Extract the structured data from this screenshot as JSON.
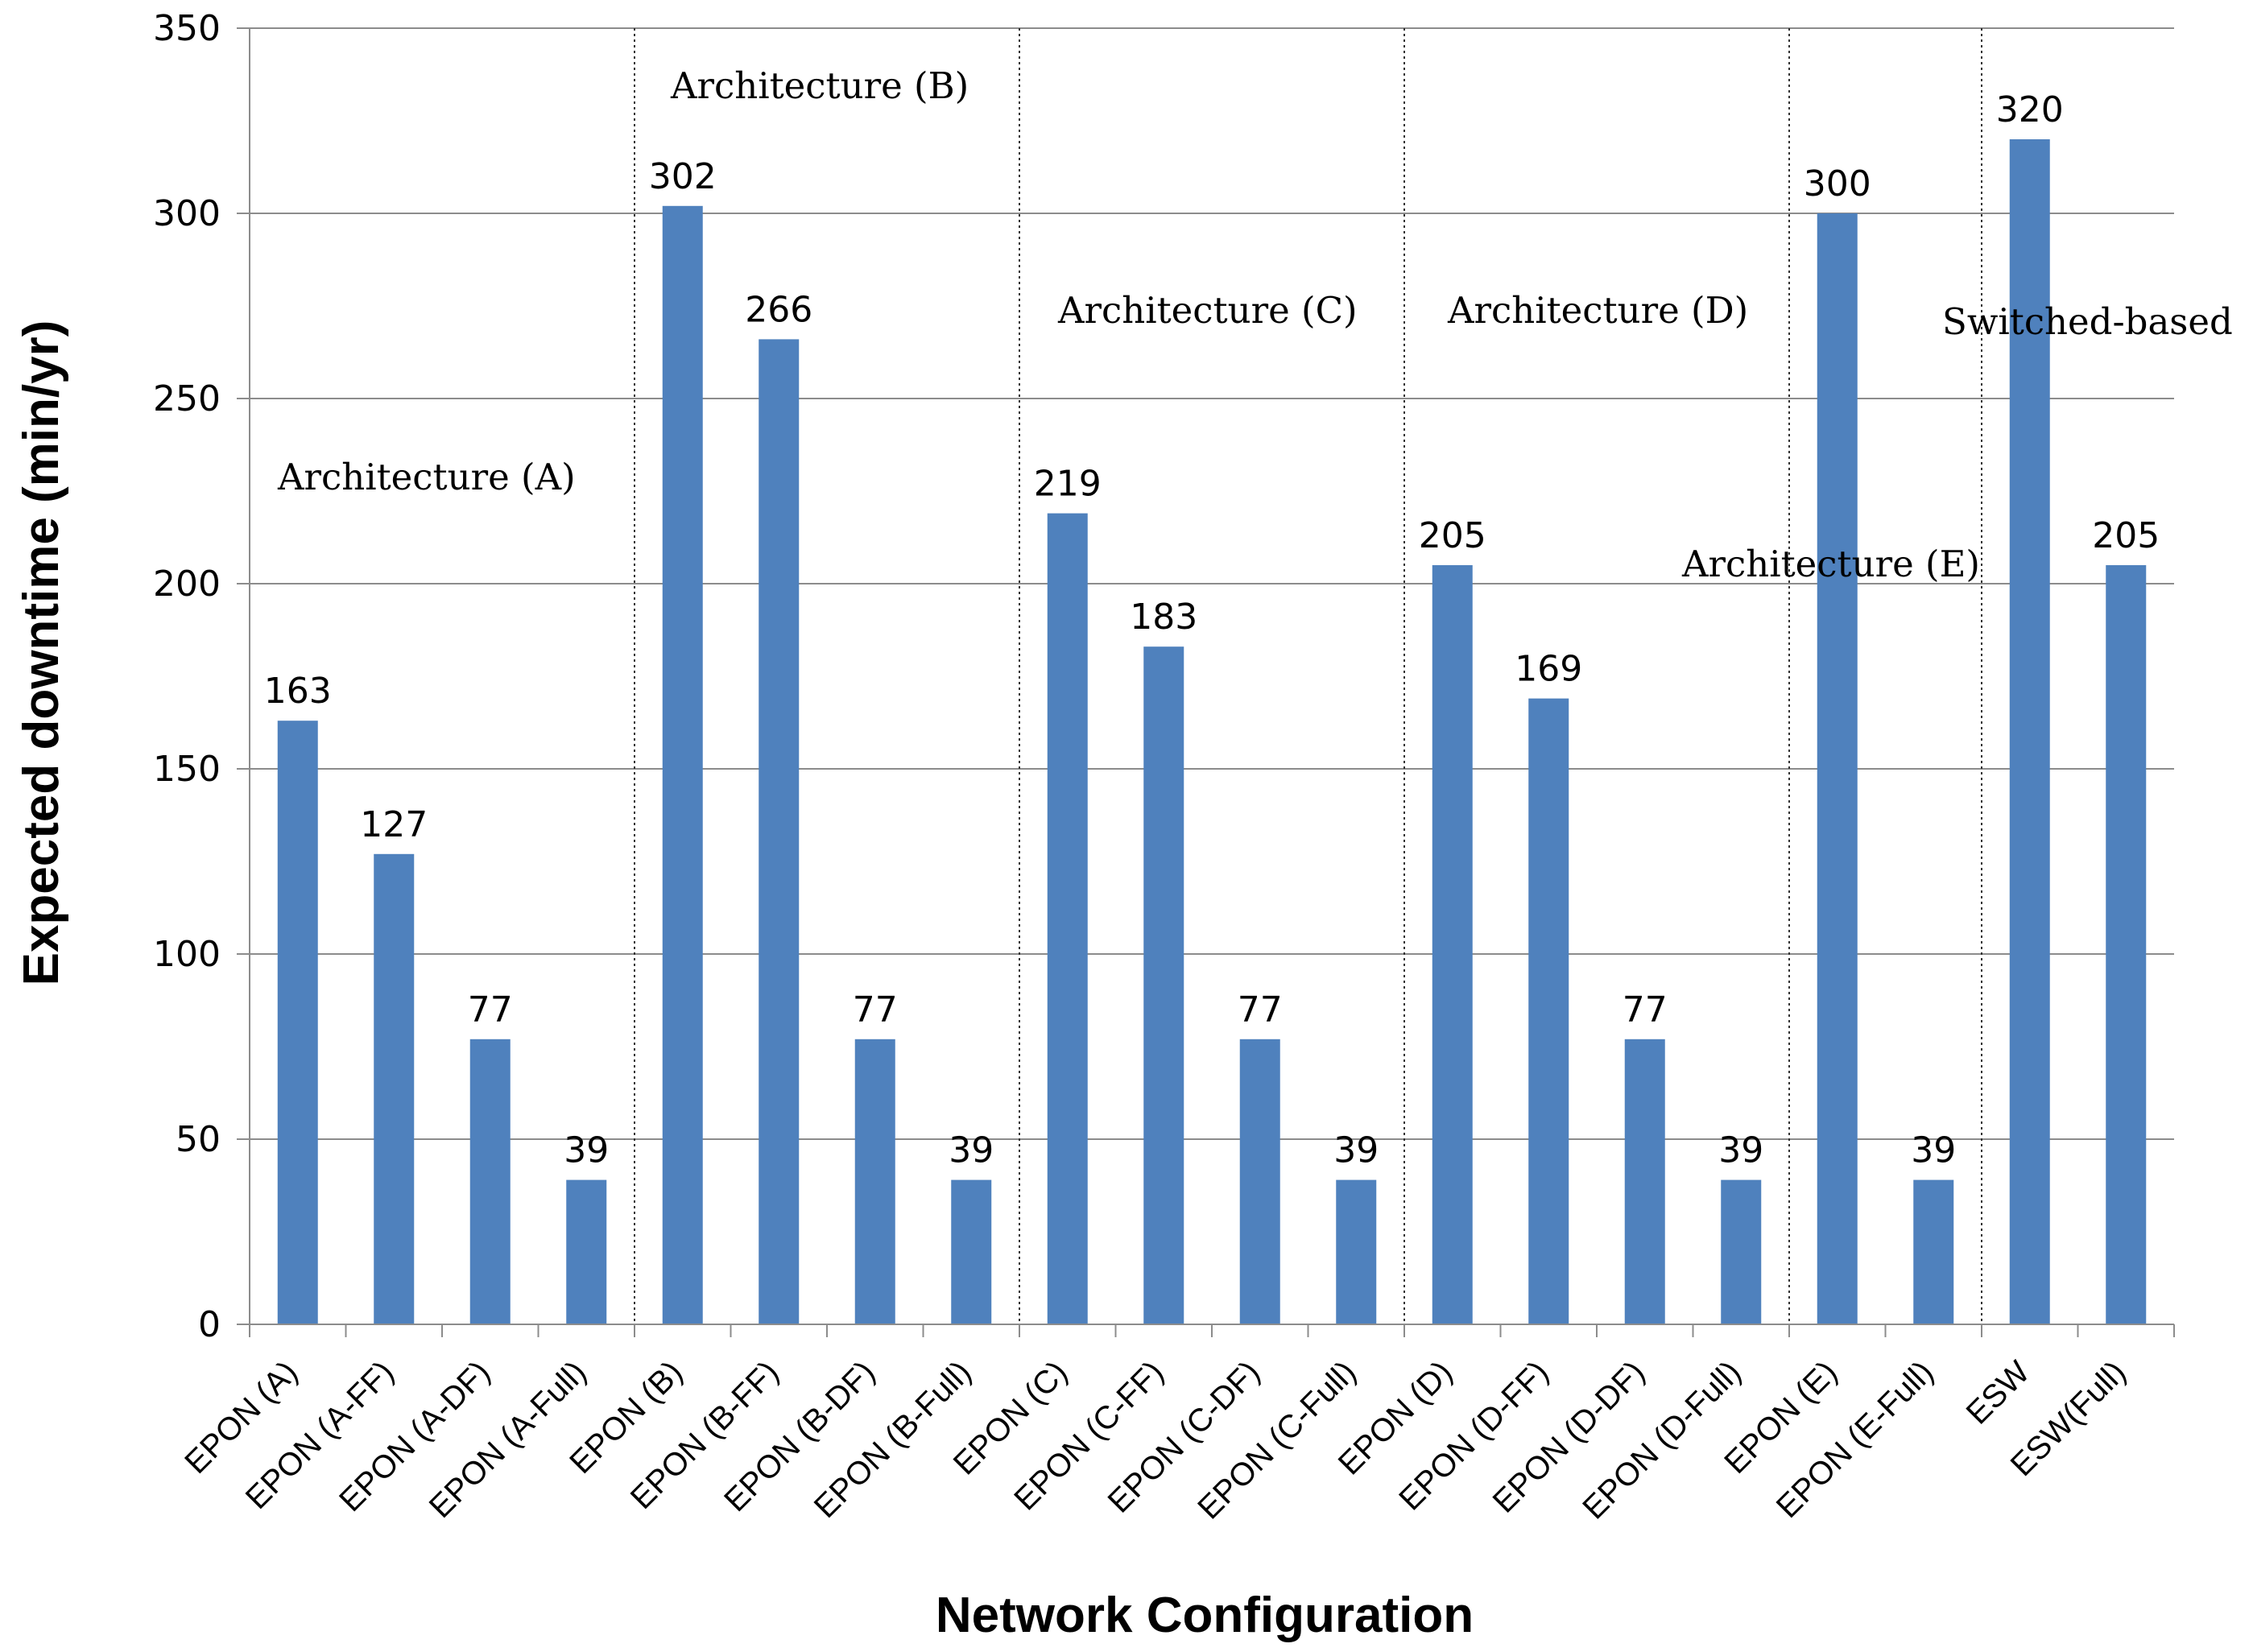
{
  "chart_data": {
    "type": "bar",
    "title": "",
    "xlabel": "Network Configuration",
    "ylabel": "Expected downtime (min/yr)",
    "ylim": [
      0,
      350
    ],
    "yticks": [
      0,
      50,
      100,
      150,
      200,
      250,
      300,
      350
    ],
    "grid": true,
    "bar_color": "#4f81bd",
    "categories": [
      "EPON (A)",
      "EPON (A-FF)",
      "EPON (A-DF)",
      "EPON (A-Full)",
      "EPON (B)",
      "EPON (B-FF)",
      "EPON (B-DF)",
      "EPON (B-Full)",
      "EPON (C)",
      "EPON (C-FF)",
      "EPON (C-DF)",
      "EPON (C-Full)",
      "EPON (D)",
      "EPON (D-FF)",
      "EPON (D-DF)",
      "EPON (D-Full)",
      "EPON (E)",
      "EPON (E-Full)",
      "ESW",
      "ESW(Full)"
    ],
    "values": [
      163,
      127,
      77,
      39,
      302,
      266,
      77,
      39,
      219,
      183,
      77,
      39,
      205,
      169,
      77,
      39,
      300,
      39,
      320,
      205
    ],
    "group_separators_after_index": [
      3,
      7,
      11,
      15,
      17
    ],
    "annotations": [
      "Architecture (A)",
      "Architecture (B)",
      "Architecture (C)",
      "Architecture (D)",
      "Architecture (E)",
      "Switched-based"
    ]
  }
}
